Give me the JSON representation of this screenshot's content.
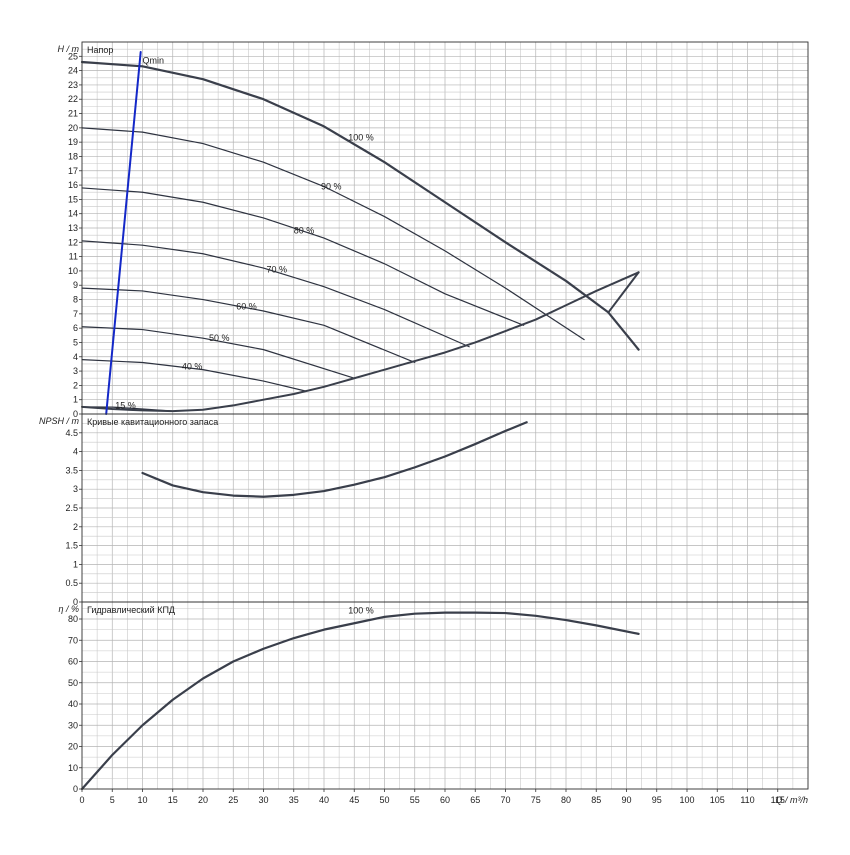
{
  "chart_data": [
    {
      "type": "line",
      "panel": "head",
      "title": "Напор",
      "ylabel": "H / m",
      "xlim": [
        0,
        120
      ],
      "ylim": [
        0,
        26
      ],
      "yticks": [
        0,
        1,
        2,
        3,
        4,
        5,
        6,
        7,
        8,
        9,
        10,
        11,
        12,
        13,
        14,
        15,
        16,
        17,
        18,
        19,
        20,
        21,
        22,
        23,
        24,
        25
      ],
      "grid": true,
      "series": [
        {
          "name": "100 %",
          "color": "#3a3f4b",
          "width": 2.2,
          "x": [
            0,
            10,
            20,
            30,
            40,
            50,
            60,
            70,
            80,
            87,
            92
          ],
          "y": [
            24.6,
            24.3,
            23.4,
            22.0,
            20.1,
            17.6,
            14.8,
            12.0,
            9.3,
            7.1,
            4.5
          ]
        },
        {
          "name": "90 %",
          "color": "#2e3340",
          "width": 1.2,
          "x": [
            0,
            10,
            20,
            30,
            40,
            50,
            60,
            70,
            83
          ],
          "y": [
            20.0,
            19.7,
            18.9,
            17.6,
            15.9,
            13.8,
            11.4,
            8.8,
            5.2
          ]
        },
        {
          "name": "80 %",
          "color": "#2e3340",
          "width": 1.2,
          "x": [
            0,
            10,
            20,
            30,
            40,
            50,
            60,
            73
          ],
          "y": [
            15.8,
            15.5,
            14.8,
            13.7,
            12.3,
            10.5,
            8.4,
            6.2
          ]
        },
        {
          "name": "70 %",
          "color": "#2e3340",
          "width": 1.2,
          "x": [
            0,
            10,
            20,
            30,
            40,
            50,
            64
          ],
          "y": [
            12.1,
            11.8,
            11.2,
            10.2,
            8.9,
            7.3,
            4.7
          ]
        },
        {
          "name": "60 %",
          "color": "#2e3340",
          "width": 1.2,
          "x": [
            0,
            10,
            20,
            30,
            40,
            55
          ],
          "y": [
            8.8,
            8.6,
            8.0,
            7.2,
            6.2,
            3.6
          ]
        },
        {
          "name": "50 %",
          "color": "#2e3340",
          "width": 1.2,
          "x": [
            0,
            10,
            20,
            30,
            45
          ],
          "y": [
            6.1,
            5.9,
            5.3,
            4.5,
            2.5
          ]
        },
        {
          "name": "40 %",
          "color": "#2e3340",
          "width": 1.2,
          "x": [
            0,
            10,
            20,
            30,
            37
          ],
          "y": [
            3.8,
            3.6,
            3.1,
            2.3,
            1.6
          ]
        },
        {
          "name": "15 %",
          "color": "#2e3340",
          "width": 1.2,
          "x": [
            0,
            5,
            10,
            15
          ],
          "y": [
            0.5,
            0.48,
            0.35,
            0.2
          ]
        },
        {
          "name": "",
          "color": "#3a3f4b",
          "width": 2.0,
          "x": [
            0,
            5,
            10,
            15,
            20,
            25,
            30,
            35,
            40,
            45,
            50,
            55,
            60,
            65,
            70,
            75,
            80,
            85,
            92
          ],
          "y": [
            0.5,
            0.35,
            0.25,
            0.2,
            0.3,
            0.6,
            1.0,
            1.4,
            1.9,
            2.5,
            3.1,
            3.7,
            4.3,
            5.0,
            5.8,
            6.6,
            7.6,
            8.6,
            9.9
          ]
        },
        {
          "name": "",
          "color": "#3a3f4b",
          "width": 2.0,
          "x": [
            87,
            92
          ],
          "y": [
            7.1,
            9.9
          ]
        },
        {
          "name": "Qmin",
          "color": "#1428c8",
          "width": 2.0,
          "x": [
            4,
            9.7
          ],
          "y": [
            0,
            25.3
          ]
        }
      ],
      "labels": [
        {
          "text": "100 %",
          "x": 44,
          "y": 19.1
        },
        {
          "text": "90 %",
          "x": 39.5,
          "y": 15.7
        },
        {
          "text": "80 %",
          "x": 35,
          "y": 12.6
        },
        {
          "text": "70 %",
          "x": 30.5,
          "y": 9.9
        },
        {
          "text": "60 %",
          "x": 25.5,
          "y": 7.3
        },
        {
          "text": "50 %",
          "x": 21,
          "y": 5.1
        },
        {
          "text": "40 %",
          "x": 16.5,
          "y": 3.1
        },
        {
          "text": "15 %",
          "x": 5.5,
          "y": 0.4
        },
        {
          "text": "Qmin",
          "x": 10,
          "y": 24.5
        }
      ]
    },
    {
      "type": "line",
      "panel": "npsh",
      "title": "Кривые кавитационного запаса",
      "ylabel": "NPSH / m",
      "xlim": [
        0,
        120
      ],
      "ylim": [
        0,
        5
      ],
      "yticks": [
        0,
        0.5,
        1,
        1.5,
        2,
        2.5,
        3,
        3.5,
        4,
        4.5
      ],
      "ytick_labels": [
        "0",
        "0.5",
        "1",
        "1.5",
        "2",
        "2.5",
        "3",
        "3.5",
        "4",
        "4.5"
      ],
      "grid": true,
      "series": [
        {
          "name": "",
          "color": "#3a3f4b",
          "width": 2.2,
          "x": [
            10,
            15,
            20,
            25,
            30,
            35,
            40,
            45,
            50,
            55,
            60,
            65,
            70,
            73.5
          ],
          "y": [
            3.43,
            3.1,
            2.92,
            2.83,
            2.8,
            2.85,
            2.95,
            3.12,
            3.32,
            3.58,
            3.87,
            4.2,
            4.55,
            4.78
          ]
        }
      ]
    },
    {
      "type": "line",
      "panel": "efficiency",
      "title": "Гидравлический КПД",
      "ylabel": "η / %",
      "xlabel": "Q / m³/h",
      "xlim": [
        0,
        120
      ],
      "ylim": [
        0,
        88
      ],
      "yticks": [
        0,
        10,
        20,
        30,
        40,
        50,
        60,
        70,
        80
      ],
      "xticks": [
        0,
        5,
        10,
        15,
        20,
        25,
        30,
        35,
        40,
        45,
        50,
        55,
        60,
        65,
        70,
        75,
        80,
        85,
        90,
        95,
        100,
        105,
        110,
        115
      ],
      "grid": true,
      "series": [
        {
          "name": "100 %",
          "color": "#3a3f4b",
          "width": 2.2,
          "x": [
            0,
            5,
            10,
            15,
            20,
            25,
            30,
            35,
            40,
            45,
            50,
            55,
            60,
            65,
            70,
            75,
            80,
            85,
            92
          ],
          "y": [
            0,
            16,
            30,
            42,
            52,
            60,
            66,
            71,
            75,
            78,
            81,
            82.5,
            83,
            83,
            82.8,
            81.5,
            79.5,
            77,
            73
          ]
        }
      ],
      "labels": [
        {
          "text": "100 %",
          "x": 44,
          "y": 82.5
        }
      ]
    }
  ]
}
